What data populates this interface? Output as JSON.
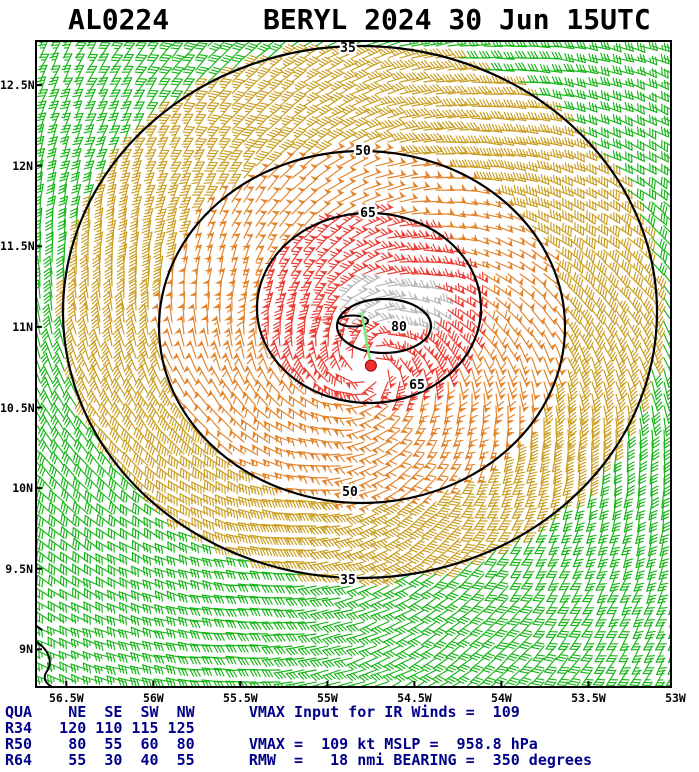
{
  "header": {
    "storm_id": "AL0224",
    "title": "BERYL 2024 30 Jun 15UTC"
  },
  "chart_data": {
    "type": "wind_barb_field",
    "title": "AL0224 BERYL 2024 30 Jun 15UTC",
    "x_axis": {
      "label": "longitude",
      "ticks": [
        {
          "label": "56.5W",
          "lon": -56.5
        },
        {
          "label": "56W",
          "lon": -56.0
        },
        {
          "label": "55.5W",
          "lon": -55.5
        },
        {
          "label": "55W",
          "lon": -55.0
        },
        {
          "label": "54.5W",
          "lon": -54.5
        },
        {
          "label": "54W",
          "lon": -54.0
        },
        {
          "label": "53.5W",
          "lon": -53.5
        },
        {
          "label": "53W",
          "lon": -53.0
        }
      ]
    },
    "y_axis": {
      "label": "latitude",
      "ticks": [
        {
          "label": "9N",
          "lat": 9.0
        },
        {
          "label": "9.5N",
          "lat": 9.5
        },
        {
          "label": "10N",
          "lat": 10.0
        },
        {
          "label": "10.5N",
          "lat": 10.5
        },
        {
          "label": "11N",
          "lat": 11.0
        },
        {
          "label": "11.5N",
          "lat": 11.5
        },
        {
          "label": "12N",
          "lat": 12.0
        },
        {
          "label": "12.5N",
          "lat": 12.5
        }
      ]
    },
    "lon_range": [
      -56.68,
      -53.02
    ],
    "lat_range": [
      8.76,
      12.78
    ],
    "center": {
      "lat": 10.76,
      "lon": -54.75
    },
    "isotachs_kt": [
      35,
      50,
      65,
      80
    ],
    "storm": {
      "vmax_kt": 109,
      "vmax_input_ir_kt": 109,
      "mslp_hpa": 958.8,
      "rmw_nmi": 18,
      "bearing_deg": 350
    },
    "wind_radii_nmi": {
      "quadrants": [
        "NE",
        "SE",
        "SW",
        "NW"
      ],
      "R34": [
        120,
        110,
        115,
        125
      ],
      "R50": [
        80,
        55,
        60,
        80
      ],
      "R64": [
        55,
        30,
        40,
        55
      ]
    },
    "colors": {
      "calm_green": "#17b517",
      "moderate_tan": "#c99e22",
      "strong_orange": "#e2832a",
      "severe_red": "#e93f35",
      "missing_gray": "#b9b9b9",
      "contour": "#000000",
      "center_dot": "#f03030",
      "bearing_line": "#7be87b"
    },
    "speed_thresholds_kt": {
      "tan": 34,
      "orange": 50,
      "red": 64
    }
  },
  "footer": {
    "lines": [
      "QUA    NE  SE  SW  NW      VMAX Input for IR Winds =  109",
      "R34   120 110 115 125",
      "R50    80  55  60  80      VMAX =  109 kt MSLP =  958.8 hPa",
      "R64    55  30  40  55      RMW  =   18 nmi BEARING =  350 degrees"
    ]
  }
}
